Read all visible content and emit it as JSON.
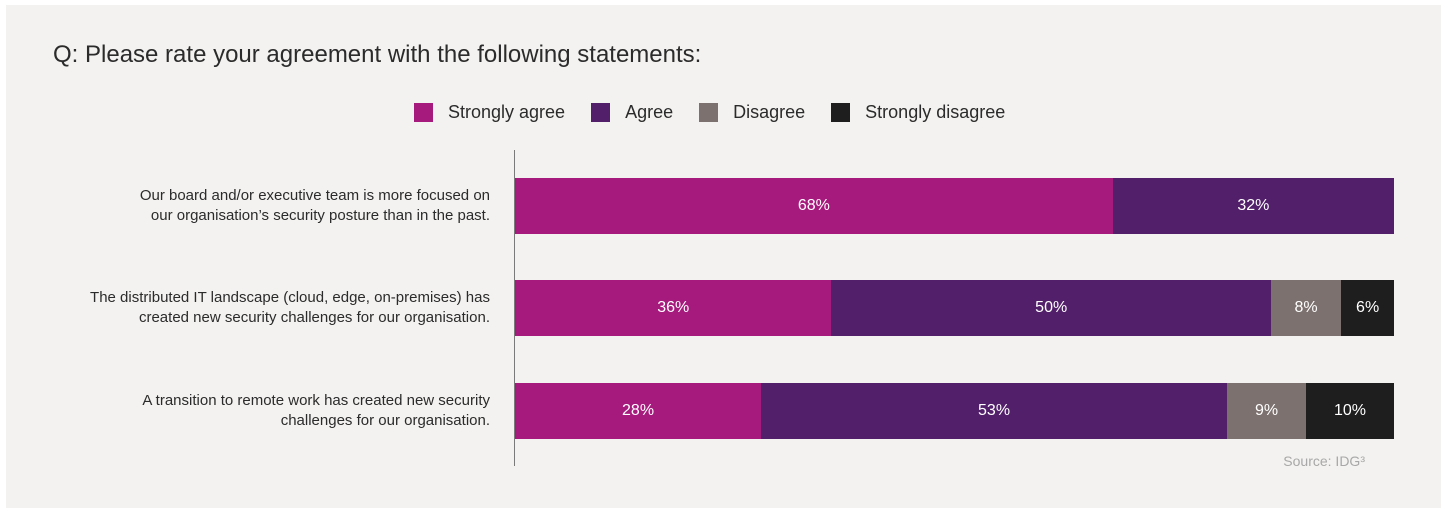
{
  "chart_data": {
    "type": "bar",
    "orientation": "horizontal",
    "stacked": true,
    "title": "Q: Please rate your agreement with the following statements:",
    "legend_position": "top",
    "categories": [
      [
        "Our board and/or executive team is more focused on",
        "our organisation’s security posture than in the past."
      ],
      [
        "The distributed IT landscape (cloud, edge, on-premises) has",
        "created new security challenges for our organisation."
      ],
      [
        "A transition to remote work has created new security",
        "challenges for our organisation."
      ]
    ],
    "series": [
      {
        "name": "Strongly agree",
        "color": "#a6197d",
        "values": [
          68,
          36,
          28
        ]
      },
      {
        "name": "Agree",
        "color": "#52206a",
        "values": [
          32,
          50,
          53
        ]
      },
      {
        "name": "Disagree",
        "color": "#7c716e",
        "values": [
          0,
          8,
          9
        ]
      },
      {
        "name": "Strongly disagree",
        "color": "#1e1e1e",
        "values": [
          0,
          6,
          10
        ]
      }
    ],
    "value_suffix": "%",
    "xlim": [
      0,
      100
    ],
    "grid": false,
    "source": "Source: IDG³"
  }
}
